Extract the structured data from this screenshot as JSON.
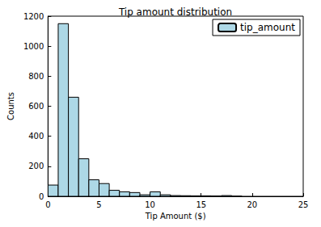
{
  "chart_data": {
    "type": "histogram",
    "title": "Tip amount distribution",
    "x_label": "Tip Amount ($)",
    "y_label": "Counts",
    "bins": [
      0,
      1,
      2,
      3,
      4,
      5,
      6,
      7,
      8,
      9,
      10,
      11,
      12,
      13,
      14,
      15,
      16,
      17,
      18,
      19
    ],
    "series": [
      {
        "name": "tip_amount",
        "color": "#add8e6",
        "values": [
          75,
          1150,
          660,
          250,
          110,
          85,
          40,
          30,
          25,
          10,
          30,
          10,
          5,
          4,
          3,
          3,
          2,
          5,
          0
        ]
      }
    ],
    "xlim": [
      0,
      25
    ],
    "xticks": [
      0,
      5,
      10,
      15,
      20,
      25
    ],
    "ylim": [
      0,
      1200
    ],
    "yticks": [
      0,
      200,
      400,
      600,
      800,
      1000,
      1200
    ],
    "grid": false,
    "legend": "upper right"
  }
}
